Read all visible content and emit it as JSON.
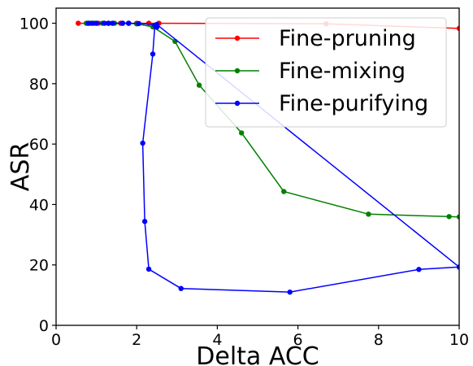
{
  "chart_data": {
    "type": "line",
    "xlabel": "Delta ACC",
    "ylabel": "ASR",
    "xlim": [
      0,
      10
    ],
    "ylim": [
      0,
      105
    ],
    "xticks": [
      "0",
      "2",
      "4",
      "6",
      "8",
      "10"
    ],
    "yticks": [
      "0",
      "20",
      "40",
      "60",
      "80",
      "100"
    ],
    "xtick_values": [
      0,
      2,
      4,
      6,
      8,
      10
    ],
    "ytick_values": [
      0,
      20,
      40,
      60,
      80,
      100
    ],
    "grid": false,
    "legend_position": "top-right",
    "series": [
      {
        "name": "Fine-pruning",
        "color": "#ff0000",
        "points": [
          [
            0.55,
            100
          ],
          [
            0.8,
            100
          ],
          [
            1.05,
            100
          ],
          [
            1.3,
            100
          ],
          [
            1.6,
            100
          ],
          [
            1.8,
            100
          ],
          [
            2.0,
            100
          ],
          [
            2.3,
            100
          ],
          [
            2.55,
            100
          ],
          [
            6.7,
            99.8
          ],
          [
            10.0,
            98.3
          ]
        ]
      },
      {
        "name": "Fine-mixing",
        "color": "#008000",
        "points": [
          [
            0.75,
            100
          ],
          [
            0.85,
            100
          ],
          [
            0.95,
            100
          ],
          [
            1.15,
            100
          ],
          [
            1.3,
            100
          ],
          [
            1.45,
            100
          ],
          [
            1.65,
            100
          ],
          [
            1.8,
            100
          ],
          [
            2.0,
            99.8
          ],
          [
            2.4,
            98.8
          ],
          [
            2.95,
            94
          ],
          [
            3.55,
            79.5
          ],
          [
            4.6,
            63.7
          ],
          [
            5.65,
            44.3
          ],
          [
            7.75,
            36.8
          ],
          [
            9.75,
            36.0
          ],
          [
            10.0,
            35.9
          ]
        ]
      },
      {
        "name": "Fine-purifying",
        "color": "#0000ff",
        "points": [
          [
            2.5,
            98.7
          ],
          [
            2.45,
            99.3
          ],
          [
            2.4,
            89.8
          ],
          [
            2.15,
            60.3
          ],
          [
            2.2,
            34.4
          ],
          [
            2.3,
            18.6
          ],
          [
            3.1,
            12.2
          ],
          [
            5.8,
            11.0
          ],
          [
            9.0,
            18.5
          ],
          [
            10.0,
            19.3
          ],
          [
            2.5,
            99.6
          ],
          [
            2.05,
            99.9
          ],
          [
            1.8,
            100
          ],
          [
            1.65,
            100
          ],
          [
            1.4,
            100
          ],
          [
            1.3,
            100
          ],
          [
            1.2,
            100
          ],
          [
            1.0,
            100
          ],
          [
            0.9,
            100
          ],
          [
            0.8,
            100
          ]
        ]
      }
    ]
  }
}
